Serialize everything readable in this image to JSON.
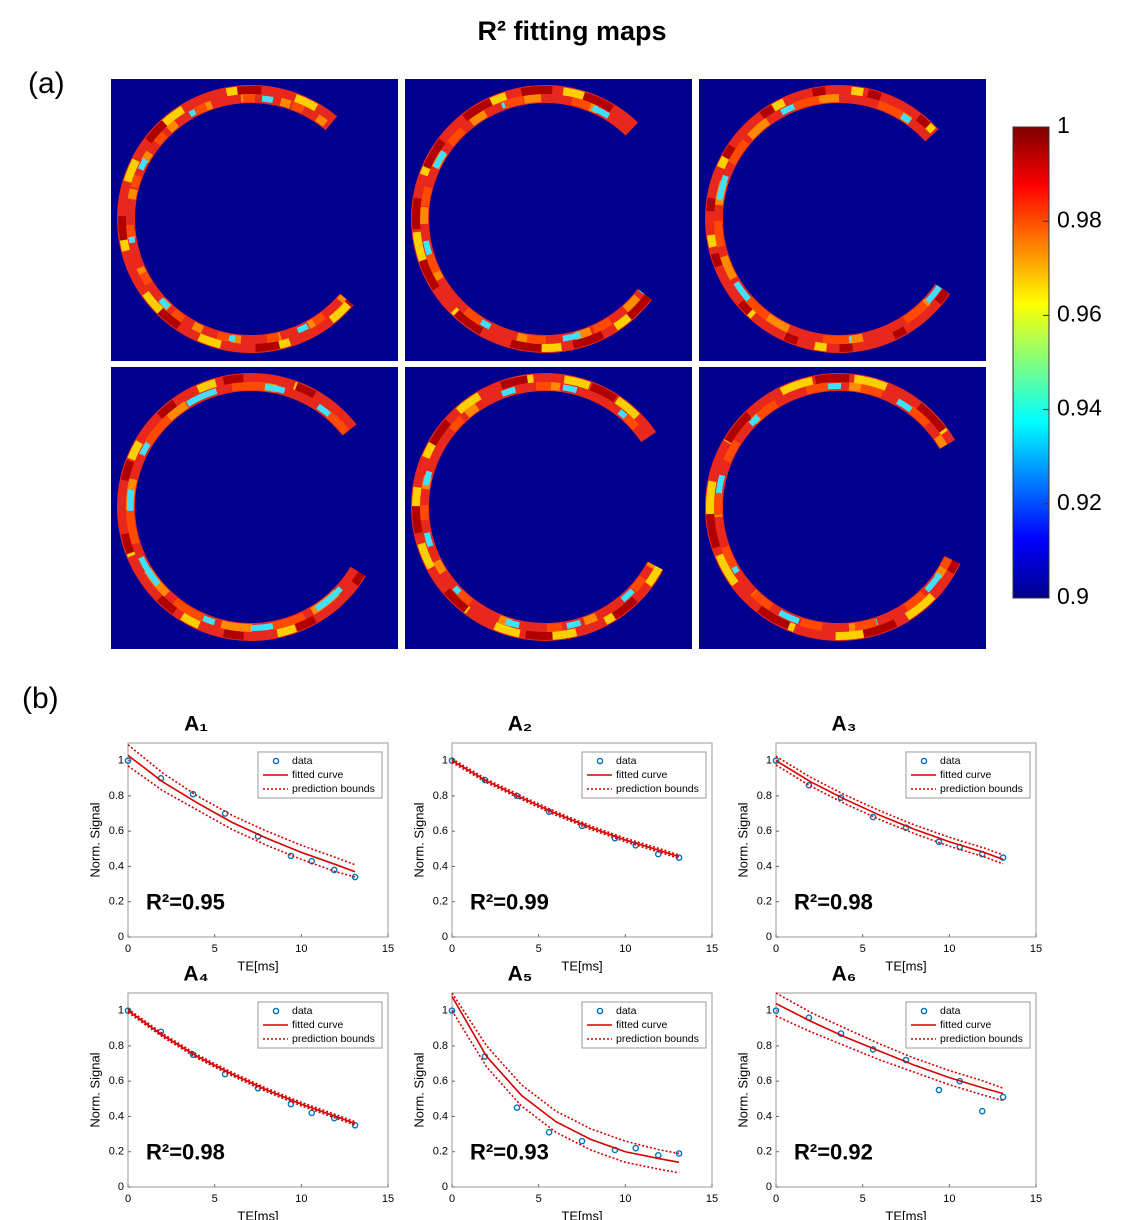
{
  "title": "R² fitting maps",
  "panel_labels": [
    "(a)",
    "(b)"
  ],
  "colorbar": {
    "lim": [
      0.9,
      1
    ],
    "ticks": [
      0.9,
      0.92,
      0.94,
      0.96,
      0.98,
      1
    ]
  },
  "chart_data": [
    {
      "type": "fit",
      "title": "A₁",
      "annotation": "R²=0.95",
      "x_label": "TE[ms]",
      "y_label": "Norm. Signal",
      "xlim": [
        0,
        15
      ],
      "xticks": [
        0,
        5,
        10,
        15
      ],
      "ylim": [
        0,
        1.1
      ],
      "yticks": [
        0,
        0.2,
        0.4,
        0.6,
        0.8,
        1
      ],
      "series": [
        {
          "name": "data",
          "color": "#0072bd",
          "x": [
            0,
            1.9,
            3.75,
            5.6,
            7.5,
            9.4,
            10.6,
            11.9,
            13.1
          ],
          "values": [
            1,
            0.9,
            0.81,
            0.7,
            0.57,
            0.46,
            0.43,
            0.38,
            0.34
          ]
        },
        {
          "name": "fitted curve",
          "color": "#d60000",
          "x": [
            0,
            2,
            4,
            6,
            8,
            10,
            12,
            13.1
          ],
          "values": [
            1.03,
            0.88,
            0.76,
            0.65,
            0.56,
            0.48,
            0.41,
            0.37
          ]
        },
        {
          "name": "prediction bounds",
          "color": "#d60000",
          "x": [
            0,
            2,
            4,
            6,
            8,
            10,
            12,
            13.1
          ],
          "upper": [
            1.09,
            0.93,
            0.8,
            0.69,
            0.6,
            0.52,
            0.45,
            0.41
          ],
          "lower": [
            0.97,
            0.83,
            0.72,
            0.61,
            0.52,
            0.44,
            0.37,
            0.34
          ]
        }
      ]
    },
    {
      "type": "fit",
      "title": "A₂",
      "annotation": "R²=0.99",
      "x_label": "TE[ms]",
      "y_label": "Norm. Signal",
      "xlim": [
        0,
        15
      ],
      "xticks": [
        0,
        5,
        10,
        15
      ],
      "ylim": [
        0,
        1.1
      ],
      "yticks": [
        0,
        0.2,
        0.4,
        0.6,
        0.8,
        1
      ],
      "series": [
        {
          "name": "data",
          "color": "#0072bd",
          "x": [
            0,
            1.9,
            3.75,
            5.6,
            7.5,
            9.4,
            10.6,
            11.9,
            13.1
          ],
          "values": [
            1,
            0.89,
            0.8,
            0.71,
            0.63,
            0.56,
            0.52,
            0.47,
            0.45
          ]
        },
        {
          "name": "fitted curve",
          "color": "#d60000",
          "x": [
            0,
            2,
            4,
            6,
            8,
            10,
            12,
            13.1
          ],
          "values": [
            1,
            0.885,
            0.79,
            0.7,
            0.62,
            0.55,
            0.49,
            0.455
          ]
        },
        {
          "name": "prediction bounds",
          "color": "#d60000",
          "x": [
            0,
            2,
            4,
            6,
            8,
            10,
            12,
            13.1
          ],
          "upper": [
            1.01,
            0.895,
            0.8,
            0.71,
            0.63,
            0.56,
            0.5,
            0.465
          ],
          "lower": [
            0.99,
            0.875,
            0.78,
            0.69,
            0.61,
            0.54,
            0.48,
            0.445
          ]
        }
      ]
    },
    {
      "type": "fit",
      "title": "A₃",
      "annotation": "R²=0.98",
      "x_label": "TE[ms]",
      "y_label": "Norm. Signal",
      "xlim": [
        0,
        15
      ],
      "xticks": [
        0,
        5,
        10,
        15
      ],
      "ylim": [
        0,
        1.1
      ],
      "yticks": [
        0,
        0.2,
        0.4,
        0.6,
        0.8,
        1
      ],
      "series": [
        {
          "name": "data",
          "color": "#0072bd",
          "x": [
            0,
            1.9,
            3.75,
            5.6,
            7.5,
            9.4,
            10.6,
            11.9,
            13.1
          ],
          "values": [
            1,
            0.86,
            0.79,
            0.68,
            0.62,
            0.54,
            0.51,
            0.47,
            0.45
          ]
        },
        {
          "name": "fitted curve",
          "color": "#d60000",
          "x": [
            0,
            2,
            4,
            6,
            8,
            10,
            12,
            13.1
          ],
          "values": [
            1,
            0.88,
            0.78,
            0.69,
            0.61,
            0.54,
            0.48,
            0.44
          ]
        },
        {
          "name": "prediction bounds",
          "color": "#d60000",
          "x": [
            0,
            2,
            4,
            6,
            8,
            10,
            12,
            13.1
          ],
          "upper": [
            1.025,
            0.905,
            0.805,
            0.715,
            0.635,
            0.565,
            0.505,
            0.465
          ],
          "lower": [
            0.975,
            0.855,
            0.755,
            0.665,
            0.585,
            0.515,
            0.455,
            0.415
          ]
        }
      ]
    },
    {
      "type": "fit",
      "title": "A₄",
      "annotation": "R²=0.98",
      "x_label": "TE[ms]",
      "y_label": "Norm. Signal",
      "xlim": [
        0,
        15
      ],
      "xticks": [
        0,
        5,
        10,
        15
      ],
      "ylim": [
        0,
        1.1
      ],
      "yticks": [
        0,
        0.2,
        0.4,
        0.6,
        0.8,
        1
      ],
      "series": [
        {
          "name": "data",
          "color": "#0072bd",
          "x": [
            0,
            1.9,
            3.75,
            5.6,
            7.5,
            9.4,
            10.6,
            11.9,
            13.1
          ],
          "values": [
            1,
            0.88,
            0.75,
            0.64,
            0.56,
            0.47,
            0.42,
            0.39,
            0.35
          ]
        },
        {
          "name": "fitted curve",
          "color": "#d60000",
          "x": [
            0,
            2,
            4,
            6,
            8,
            10,
            12,
            13.1
          ],
          "values": [
            1,
            0.86,
            0.74,
            0.64,
            0.55,
            0.47,
            0.4,
            0.36
          ]
        },
        {
          "name": "prediction bounds",
          "color": "#d60000",
          "x": [
            0,
            2,
            4,
            6,
            8,
            10,
            12,
            13.1
          ],
          "upper": [
            1.01,
            0.87,
            0.75,
            0.65,
            0.56,
            0.48,
            0.41,
            0.37
          ],
          "lower": [
            0.99,
            0.85,
            0.73,
            0.63,
            0.54,
            0.46,
            0.39,
            0.35
          ]
        }
      ]
    },
    {
      "type": "fit",
      "title": "A₅",
      "annotation": "R²=0.93",
      "x_label": "TE[ms]",
      "y_label": "Norm. Signal",
      "xlim": [
        0,
        15
      ],
      "xticks": [
        0,
        5,
        10,
        15
      ],
      "ylim": [
        0,
        1.1
      ],
      "yticks": [
        0,
        0.2,
        0.4,
        0.6,
        0.8,
        1
      ],
      "series": [
        {
          "name": "data",
          "color": "#0072bd",
          "x": [
            0,
            1.9,
            3.75,
            5.6,
            7.5,
            9.4,
            10.6,
            11.9,
            13.1
          ],
          "values": [
            1,
            0.74,
            0.45,
            0.31,
            0.26,
            0.21,
            0.22,
            0.18,
            0.19
          ]
        },
        {
          "name": "fitted curve",
          "color": "#d60000",
          "x": [
            0,
            2,
            4,
            6,
            8,
            10,
            12,
            13.1
          ],
          "values": [
            1.08,
            0.74,
            0.52,
            0.37,
            0.27,
            0.2,
            0.16,
            0.14
          ]
        },
        {
          "name": "prediction bounds",
          "color": "#d60000",
          "x": [
            0,
            2,
            4,
            6,
            8,
            10,
            12,
            13.1
          ],
          "upper": [
            1.1,
            0.8,
            0.58,
            0.43,
            0.33,
            0.26,
            0.21,
            0.19
          ],
          "lower": [
            1,
            0.68,
            0.46,
            0.31,
            0.21,
            0.14,
            0.1,
            0.08
          ]
        }
      ]
    },
    {
      "type": "fit",
      "title": "A₆",
      "annotation": "R²=0.92",
      "x_label": "TE[ms]",
      "y_label": "Norm. Signal",
      "xlim": [
        0,
        15
      ],
      "xticks": [
        0,
        5,
        10,
        15
      ],
      "ylim": [
        0,
        1.1
      ],
      "yticks": [
        0,
        0.2,
        0.4,
        0.6,
        0.8,
        1
      ],
      "series": [
        {
          "name": "data",
          "color": "#0072bd",
          "x": [
            0,
            1.9,
            3.75,
            5.6,
            7.5,
            9.4,
            10.6,
            11.9,
            13.1
          ],
          "values": [
            1,
            0.96,
            0.87,
            0.78,
            0.72,
            0.55,
            0.6,
            0.43,
            0.51
          ]
        },
        {
          "name": "fitted curve",
          "color": "#d60000",
          "x": [
            0,
            2,
            4,
            6,
            8,
            10,
            12,
            13.1
          ],
          "values": [
            1.04,
            0.94,
            0.85,
            0.77,
            0.69,
            0.62,
            0.56,
            0.53
          ]
        },
        {
          "name": "prediction bounds",
          "color": "#d60000",
          "x": [
            0,
            2,
            4,
            6,
            8,
            10,
            12,
            13.1
          ],
          "upper": [
            1.1,
            0.99,
            0.9,
            0.81,
            0.73,
            0.66,
            0.6,
            0.56
          ],
          "lower": [
            0.97,
            0.88,
            0.8,
            0.72,
            0.65,
            0.58,
            0.52,
            0.49
          ]
        }
      ]
    }
  ]
}
